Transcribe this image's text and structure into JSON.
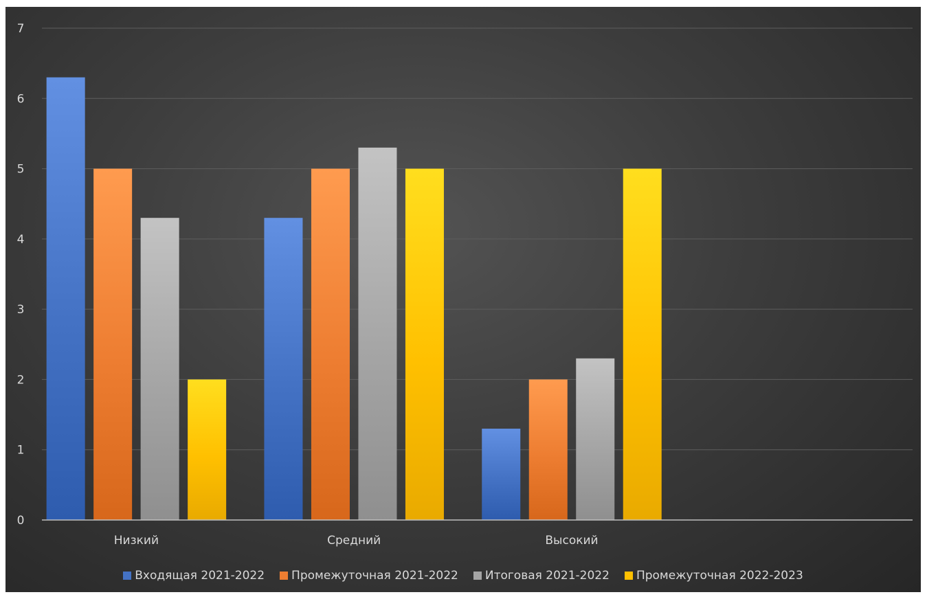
{
  "chart_data": {
    "type": "bar",
    "title": "",
    "xlabel": "",
    "ylabel": "",
    "categories": [
      "Низкий",
      "Средний",
      "Высокий"
    ],
    "series": [
      {
        "name": "Входящая 2021-2022",
        "values": [
          6.3,
          4.3,
          1.3
        ],
        "color": "#4472c4"
      },
      {
        "name": "Промежуточная 2021-2022",
        "values": [
          5,
          5,
          2
        ],
        "color": "#ed7d31"
      },
      {
        "name": "Итоговая 2021-2022",
        "values": [
          4.3,
          5.3,
          2.3
        ],
        "color": "#a5a5a5"
      },
      {
        "name": "Промежуточная 2022-2023",
        "values": [
          2,
          5,
          5
        ],
        "color": "#ffc000"
      }
    ],
    "ylim": [
      0,
      7
    ],
    "yticks": [
      "0",
      "1",
      "2",
      "3",
      "4",
      "5",
      "6",
      "7"
    ],
    "grid": true,
    "legend_position": "bottom"
  }
}
